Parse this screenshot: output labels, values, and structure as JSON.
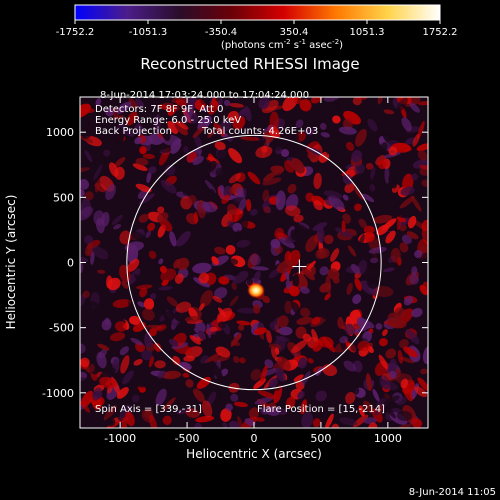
{
  "chart_data": {
    "type": "heatmap",
    "title": "Reconstructed RHESSI Image",
    "xlabel": "Heliocentric X (arcsec)",
    "ylabel": "Heliocentric Y (arcsec)",
    "xlim": [
      -1300,
      1300
    ],
    "ylim": [
      -1270,
      1270
    ],
    "x_ticks": [
      -1000,
      -500,
      0,
      500,
      1000
    ],
    "y_ticks": [
      -1000,
      -500,
      0,
      500,
      1000
    ],
    "x_tick_labels": [
      "-1000",
      "-500",
      "0",
      "500",
      "1000"
    ],
    "y_tick_labels": [
      "-1000",
      "-500",
      "0",
      "500",
      "1000"
    ],
    "colorbar": {
      "range": [
        -1752.2,
        1752.2
      ],
      "tick_labels": [
        "-1752.2",
        "-1051.3",
        "-350.4",
        "350.4",
        "1051.3",
        "1752.2"
      ],
      "tick_values": [
        -1752.2,
        -1051.3,
        -350.4,
        350.4,
        1051.3,
        1752.2
      ],
      "units_prefix": "(photons cm",
      "units_exp1": "-2",
      "units_mid": " s",
      "units_exp2": "-1",
      "units_end": " asec",
      "units_exp3": "-2",
      "units_close": ")",
      "stops": [
        "#0000ff",
        "#4b1d8a",
        "#2a0d2a",
        "#6a0008",
        "#d40000",
        "#ff7800",
        "#ffd34a",
        "#ffffff"
      ]
    },
    "solar_limb_radius_arcsec": 950,
    "flare_position": [
      15,
      -214
    ],
    "source_peak": [
      15,
      -214
    ],
    "crosshair": [
      339,
      -31
    ],
    "info_lines": [
      "8-Jun-2014 17:03:24.000 to 17:04:24.000",
      "Detectors: 7F 8F 9F, Att 0",
      "Energy Range: 6.0 - 25.0 keV"
    ],
    "method": "Back Projection",
    "total_counts": "Total counts: 4.26E+03",
    "spin_axis": "Spin Axis = [339,-31]",
    "flare_position_text": "Flare Position = [15,-214]",
    "timestamp": "8-Jun-2014 11:05",
    "background_colors": [
      "#1a0818",
      "#3a1040",
      "#5a1f6a",
      "#7a0a10",
      "#b80000",
      "#e01010"
    ]
  }
}
